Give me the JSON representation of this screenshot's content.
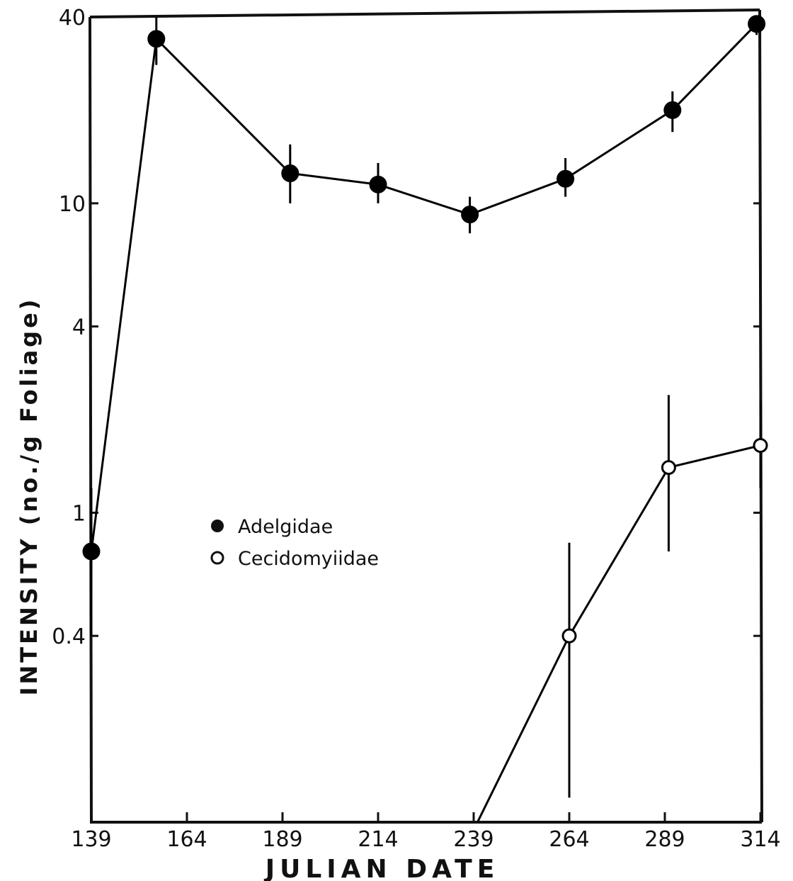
{
  "chart_data": {
    "type": "line",
    "title": "",
    "xlabel": "JULIAN DATE",
    "ylabel": "INTENSITY  (no./g Foliage)",
    "xlim": [
      139,
      314
    ],
    "ylim": [
      0.1,
      40
    ],
    "yscale": "log",
    "x_ticks": [
      139,
      164,
      189,
      214,
      239,
      264,
      289,
      314
    ],
    "x_tick_labels": [
      "139",
      "164",
      "189",
      "214",
      "239",
      "264",
      "289",
      "314"
    ],
    "y_ticks": [
      0.4,
      1,
      4,
      10,
      40
    ],
    "y_tick_labels": [
      "0.4",
      "1",
      "4",
      "10",
      "40"
    ],
    "grid": false,
    "legend_position": "center-left",
    "series": [
      {
        "name": "Adelgidae",
        "marker": "filled-circle",
        "color": "#000000",
        "x": [
          139,
          156,
          191,
          214,
          238,
          263,
          291,
          313
        ],
        "y": [
          0.75,
          34,
          12.5,
          11.5,
          9.2,
          12,
          20,
          38
        ],
        "err_low": [
          0.4,
          28,
          10,
          10,
          8,
          10.5,
          17,
          35
        ],
        "err_high": [
          1.2,
          40,
          15.5,
          13.5,
          10.5,
          14,
          23,
          40
        ]
      },
      {
        "name": "Cecidomyiidae",
        "marker": "open-circle",
        "color": "#000000",
        "x": [
          240,
          264,
          290,
          314
        ],
        "y": [
          0.1,
          0.4,
          1.4,
          1.65
        ],
        "err_low": [
          null,
          0.12,
          0.75,
          1.2
        ],
        "err_high": [
          null,
          0.8,
          2.4,
          2.3
        ]
      }
    ]
  },
  "legend": {
    "items": [
      {
        "label": "Adelgidae"
      },
      {
        "label": "Cecidomyiidae"
      }
    ]
  },
  "colors": {
    "ink": "#111111",
    "background": "#ffffff"
  }
}
